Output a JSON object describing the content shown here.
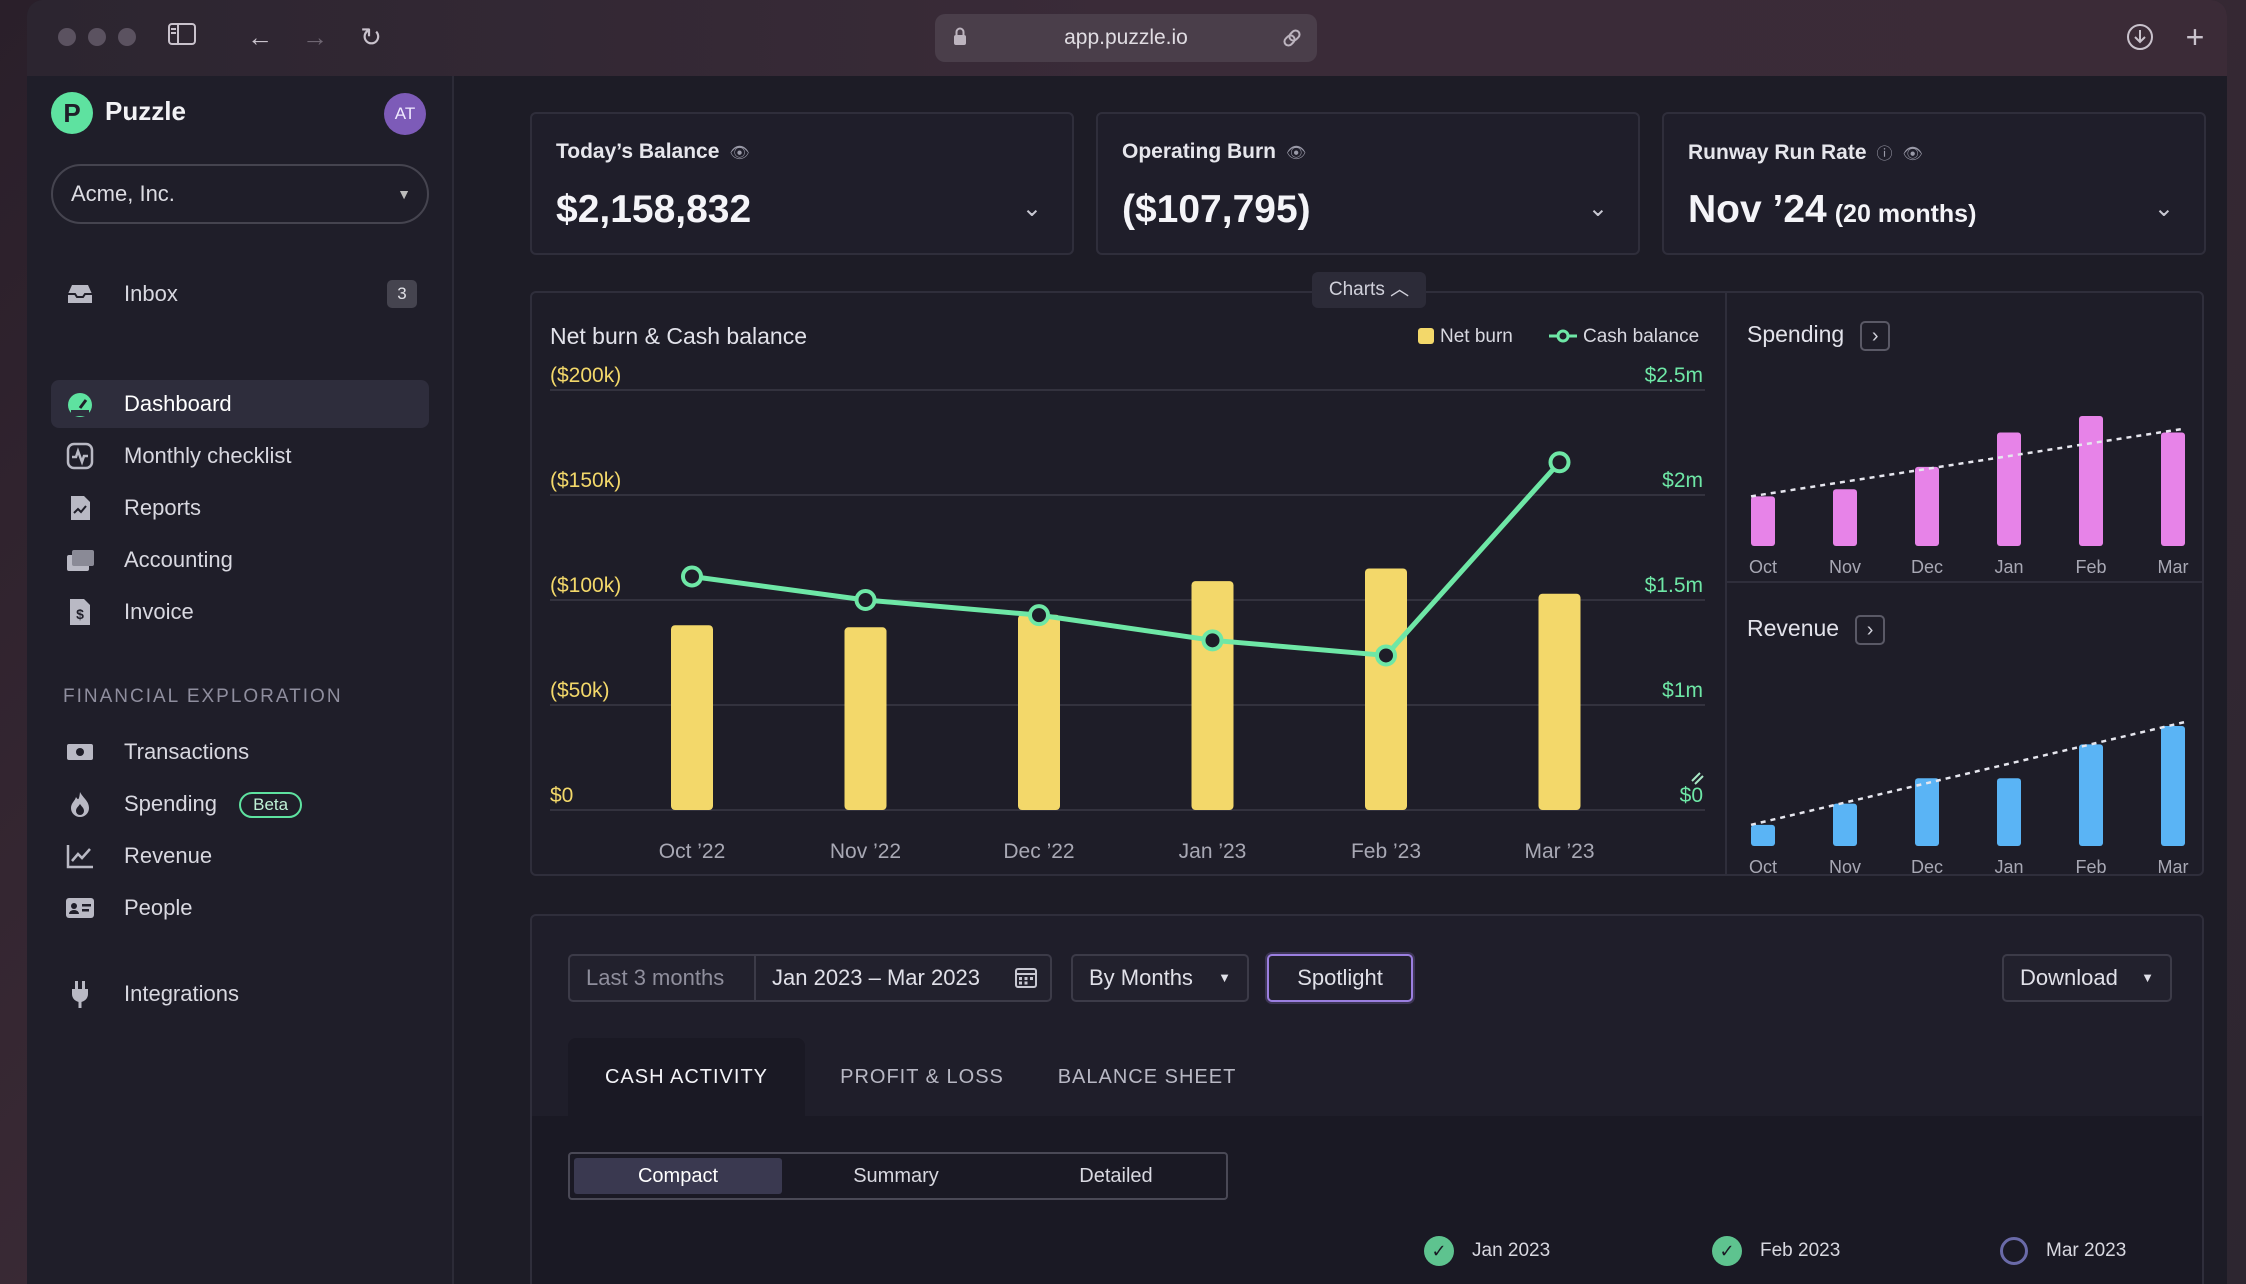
{
  "browser": {
    "url": "app.puzzle.io",
    "icons": [
      "sidebar-toggle-icon",
      "back-icon",
      "forward-icon",
      "reload-icon",
      "lock-icon",
      "link-icon",
      "download-icon",
      "new-tab-icon"
    ]
  },
  "sidebar": {
    "app_name": "Puzzle",
    "avatar_initials": "AT",
    "org_name": "Acme, Inc.",
    "inbox": {
      "label": "Inbox",
      "count": "3"
    },
    "nav_main": [
      {
        "label": "Dashboard",
        "icon": "dashboard-icon",
        "active": true
      },
      {
        "label": "Monthly checklist",
        "icon": "checklist-icon"
      },
      {
        "label": "Reports",
        "icon": "reports-icon"
      },
      {
        "label": "Accounting",
        "icon": "accounting-icon"
      },
      {
        "label": "Invoice",
        "icon": "invoice-icon"
      }
    ],
    "section_label": "FINANCIAL EXPLORATION",
    "nav_explore": [
      {
        "label": "Transactions",
        "icon": "transactions-icon"
      },
      {
        "label": "Spending",
        "icon": "flame-icon",
        "badge": "Beta"
      },
      {
        "label": "Revenue",
        "icon": "revenue-icon"
      },
      {
        "label": "People",
        "icon": "people-icon"
      }
    ],
    "integrations": {
      "label": "Integrations",
      "icon": "plug-icon"
    }
  },
  "kpis": [
    {
      "title": "Today’s Balance",
      "value": "$2,158,832",
      "sub": ""
    },
    {
      "title": "Operating Burn",
      "value": "($107,795)",
      "sub": ""
    },
    {
      "title": "Runway Run Rate",
      "value": "Nov ’24",
      "sub": "(20 months)"
    }
  ],
  "charts_toggle": "Charts",
  "colors": {
    "net_burn": "#f3d86a",
    "cash_balance": "#6ee7a6",
    "spending": "#e783e8",
    "revenue": "#5ab4f5",
    "accent": "#5ee2a0",
    "spotlight": "#9b7fe0"
  },
  "chart_data": [
    {
      "type": "bar",
      "title": "Net burn & Cash balance",
      "legend_placement": "top-right",
      "categories": [
        "Oct ’22",
        "Nov ’22",
        "Dec ’22",
        "Jan ’23",
        "Feb ’23",
        "Mar ’23"
      ],
      "series": [
        {
          "name": "Net burn",
          "type": "bar",
          "axis": "left",
          "values": [
            88000,
            87000,
            93000,
            109000,
            115000,
            103000
          ]
        },
        {
          "name": "Cash balance",
          "type": "line",
          "axis": "right",
          "values": [
            1390000,
            1250000,
            1160000,
            1010000,
            920000,
            2070000
          ]
        }
      ],
      "y_left": {
        "ticks": [
          "($200k)",
          "($150k)",
          "($100k)",
          "($50k)",
          "$0"
        ],
        "range": [
          0,
          200000
        ]
      },
      "y_right": {
        "ticks": [
          "$2.5m",
          "$2m",
          "$1.5m",
          "$1m",
          "$0"
        ],
        "range": [
          0,
          2500000
        ]
      },
      "grid": true
    },
    {
      "type": "bar",
      "title": "Spending",
      "categories": [
        "Oct",
        "Nov",
        "Dec",
        "Jan",
        "Feb",
        "Mar"
      ],
      "values": [
        0.42,
        0.48,
        0.67,
        0.96,
        1.1,
        0.96
      ],
      "trendline": true
    },
    {
      "type": "bar",
      "title": "Revenue",
      "categories": [
        "Oct",
        "Nov",
        "Dec",
        "Jan",
        "Feb",
        "Mar"
      ],
      "values": [
        0.15,
        0.3,
        0.48,
        0.48,
        0.72,
        0.85
      ],
      "trendline": true
    }
  ],
  "filters": {
    "period_preset": "Last 3 months",
    "date_range": "Jan 2023 – Mar 2023",
    "grouping": "By Months",
    "spotlight": "Spotlight",
    "download": "Download"
  },
  "report_tabs": [
    "CASH ACTIVITY",
    "PROFIT & LOSS",
    "BALANCE SHEET"
  ],
  "views": [
    "Compact",
    "Summary",
    "Detailed"
  ],
  "months": [
    {
      "label": "Jan 2023",
      "status": "complete"
    },
    {
      "label": "Feb 2023",
      "status": "complete"
    },
    {
      "label": "Mar 2023",
      "status": "in-progress"
    }
  ]
}
